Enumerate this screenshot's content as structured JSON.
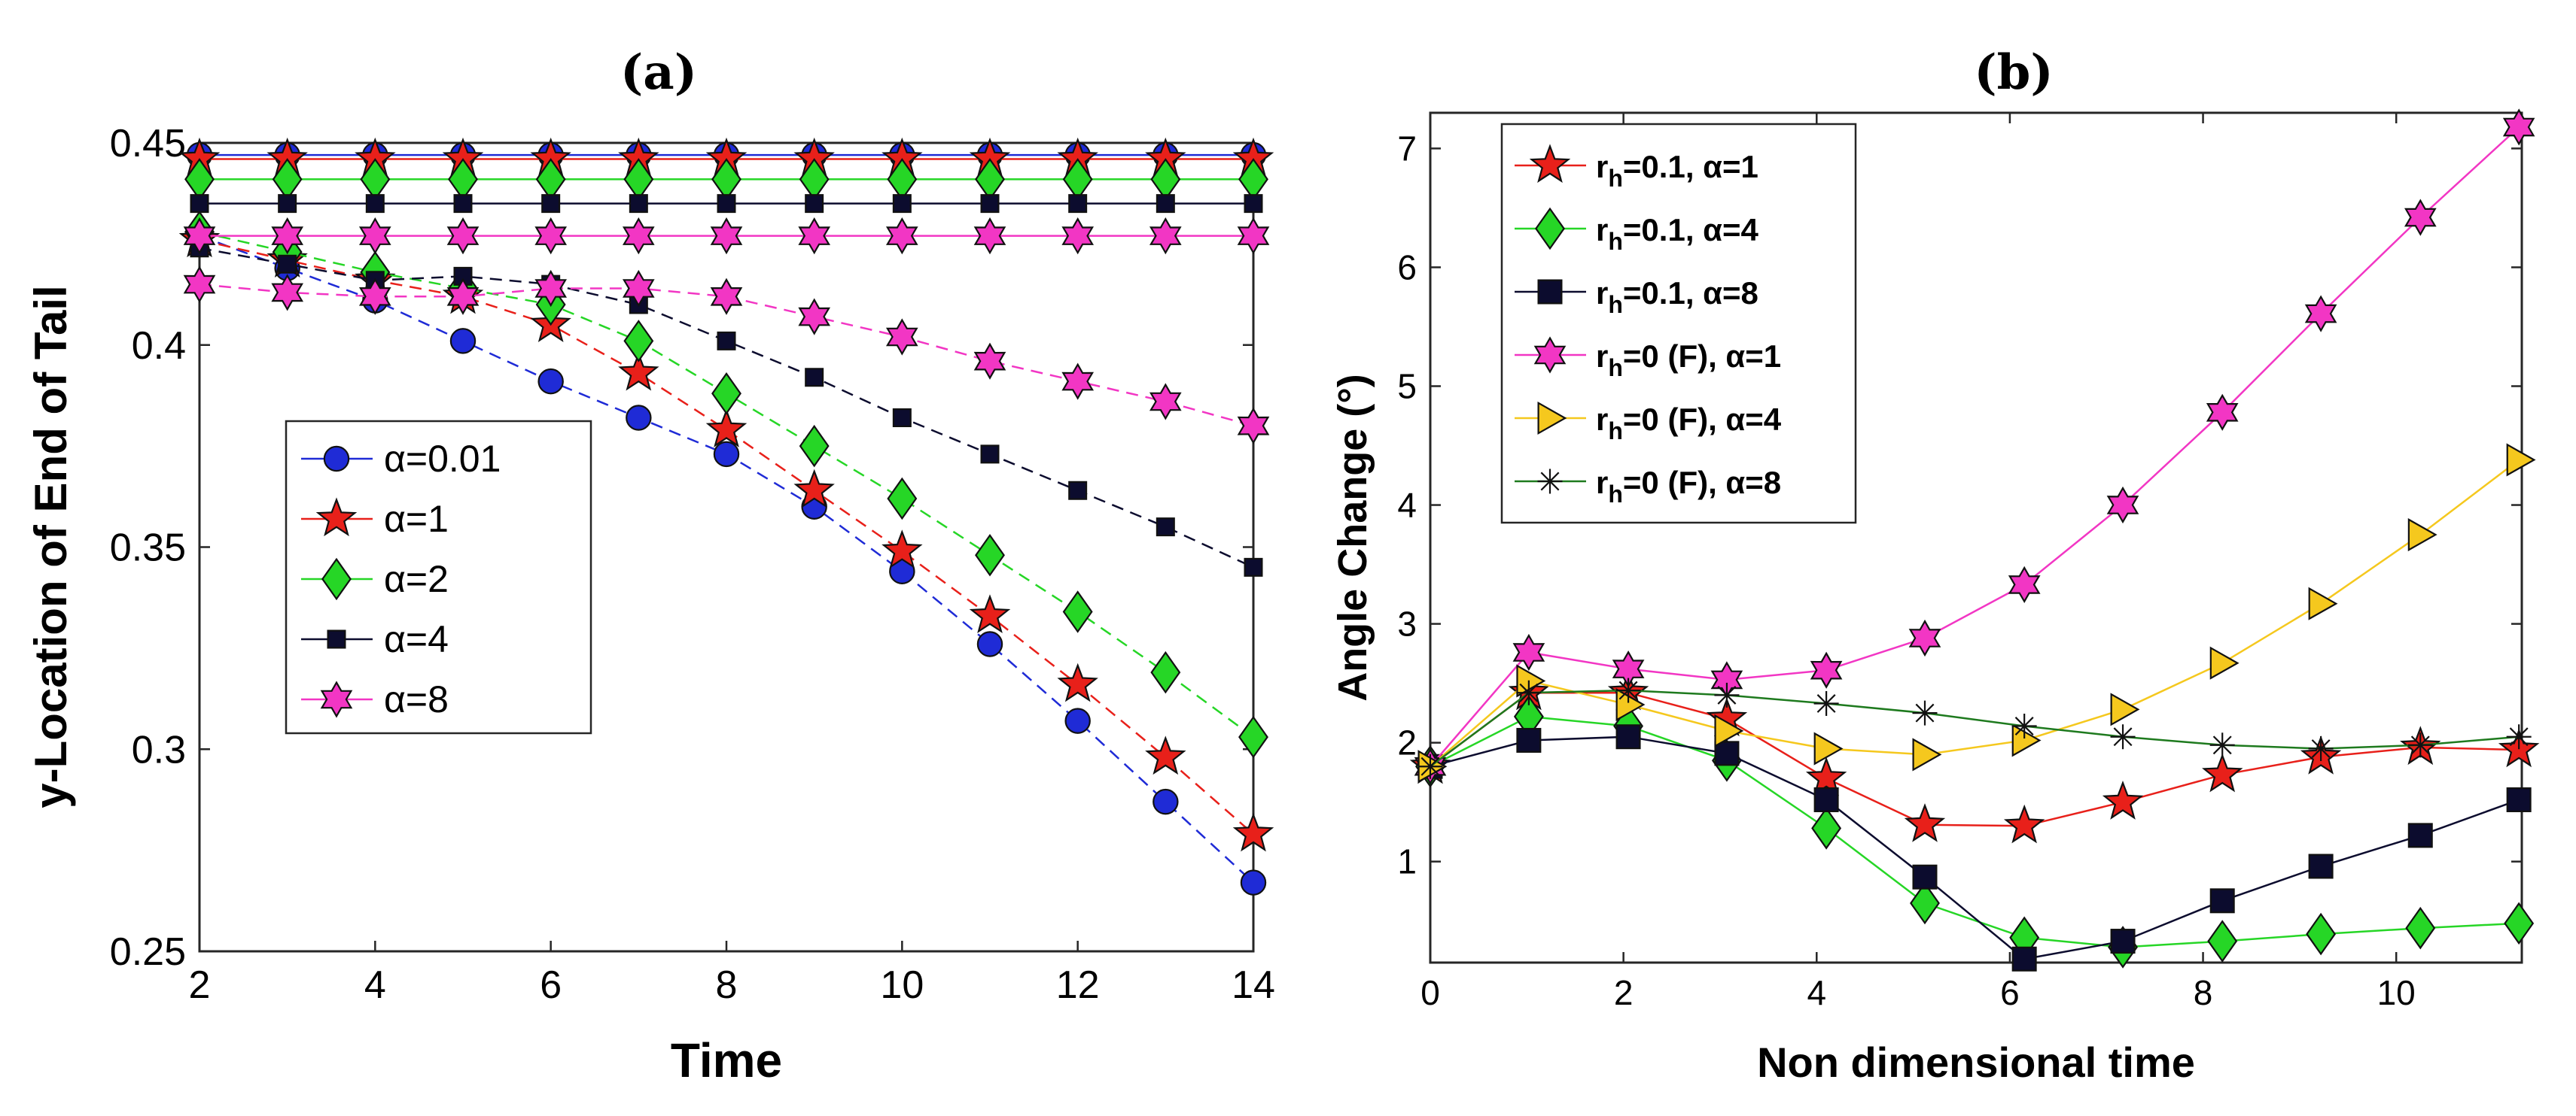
{
  "chart_data": [
    {
      "panel_title": "(a)",
      "type": "line",
      "xlabel": "Time",
      "ylabel": "y-Location of End of Tail",
      "xlim": [
        2,
        14
      ],
      "ylim": [
        0.25,
        0.45
      ],
      "xticks": [
        2,
        4,
        6,
        8,
        10,
        12,
        14
      ],
      "yticks": [
        0.25,
        0.3,
        0.35,
        0.4,
        0.45
      ],
      "ytick_labels": [
        "0.25",
        "0.3",
        "0.35",
        "0.4",
        "0.45"
      ],
      "grid": false,
      "legend_position": "center-left",
      "x": [
        2,
        3,
        4,
        5,
        6,
        7,
        8,
        9,
        10,
        11,
        12,
        13,
        14
      ],
      "series": [
        {
          "name": "α=0.01",
          "color": "#1f2bd6",
          "marker": "circle",
          "values": [
            0.427,
            0.419,
            0.411,
            0.401,
            0.391,
            0.382,
            0.373,
            0.36,
            0.344,
            0.326,
            0.307,
            0.287,
            0.267
          ],
          "reference": 0.447
        },
        {
          "name": "α=1",
          "color": "#e8201a",
          "marker": "star5",
          "values": [
            0.426,
            0.421,
            0.416,
            0.412,
            0.405,
            0.393,
            0.379,
            0.364,
            0.349,
            0.333,
            0.316,
            0.298,
            0.279
          ],
          "reference": 0.446
        },
        {
          "name": "α=2",
          "color": "#26d626",
          "marker": "diamond",
          "values": [
            0.428,
            0.423,
            0.418,
            0.414,
            0.41,
            0.401,
            0.388,
            0.375,
            0.362,
            0.348,
            0.334,
            0.319,
            0.303
          ],
          "reference": 0.441
        },
        {
          "name": "α=4",
          "color": "#0c0c2e",
          "marker": "square-small",
          "values": [
            0.424,
            0.42,
            0.416,
            0.417,
            0.415,
            0.41,
            0.401,
            0.392,
            0.382,
            0.373,
            0.364,
            0.355,
            0.345
          ],
          "reference": 0.435
        },
        {
          "name": "α=8",
          "color": "#f236c4",
          "marker": "hexagram",
          "values": [
            0.415,
            0.413,
            0.412,
            0.412,
            0.414,
            0.414,
            0.412,
            0.407,
            0.402,
            0.396,
            0.391,
            0.386,
            0.38
          ],
          "reference": 0.427
        }
      ]
    },
    {
      "panel_title": "(b)",
      "type": "line",
      "xlabel": "Non dimensional time",
      "ylabel": "Angle Change (°)",
      "xlim": [
        0,
        11.3
      ],
      "ylim": [
        0.15,
        7.3
      ],
      "xticks": [
        0,
        2,
        4,
        6,
        8,
        10
      ],
      "yticks": [
        1,
        2,
        3,
        4,
        5,
        6,
        7
      ],
      "grid": false,
      "legend_position": "top-left",
      "x": [
        0,
        1.02,
        2.05,
        3.07,
        4.1,
        5.12,
        6.15,
        7.17,
        8.2,
        9.22,
        10.25,
        11.27
      ],
      "series": [
        {
          "name_main": "r",
          "name_sub": "h",
          "name_rest": "=0.1, α=1",
          "color": "#e8201a",
          "marker": "star5",
          "values": [
            1.8,
            2.42,
            2.42,
            2.2,
            1.7,
            1.31,
            1.3,
            1.5,
            1.73,
            1.88,
            1.96,
            1.94
          ]
        },
        {
          "name_main": "r",
          "name_sub": "h",
          "name_rest": "=0.1, α=4",
          "color": "#26d626",
          "marker": "diamond",
          "values": [
            1.8,
            2.22,
            2.14,
            1.85,
            1.28,
            0.65,
            0.36,
            0.28,
            0.33,
            0.39,
            0.44,
            0.48
          ]
        },
        {
          "name_main": "r",
          "name_sub": "h",
          "name_rest": "=0.1, α=8",
          "color": "#0c0c2e",
          "marker": "square",
          "values": [
            1.8,
            2.02,
            2.05,
            1.91,
            1.52,
            0.87,
            0.18,
            0.33,
            0.67,
            0.96,
            1.22,
            1.52
          ]
        },
        {
          "name_main": "r",
          "name_sub": "h",
          "name_rest": "=0 (F), α=1",
          "color": "#f236c4",
          "marker": "hexagram",
          "values": [
            1.8,
            2.76,
            2.62,
            2.53,
            2.61,
            2.88,
            3.33,
            4.0,
            4.78,
            5.61,
            6.42,
            7.18
          ]
        },
        {
          "name_main": "r",
          "name_sub": "h",
          "name_rest": "=0 (F), α=4",
          "color": "#f5c81e",
          "marker": "triangle-right",
          "values": [
            1.8,
            2.52,
            2.32,
            2.1,
            1.95,
            1.9,
            2.02,
            2.28,
            2.67,
            3.17,
            3.75,
            4.38
          ]
        },
        {
          "name_main": "r",
          "name_sub": "h",
          "name_rest": "=0 (F), α=8",
          "color": "#1e7a1e",
          "marker": "asterisk",
          "values": [
            1.8,
            2.42,
            2.44,
            2.4,
            2.33,
            2.25,
            2.14,
            2.05,
            1.98,
            1.95,
            1.98,
            2.05
          ]
        }
      ]
    }
  ]
}
